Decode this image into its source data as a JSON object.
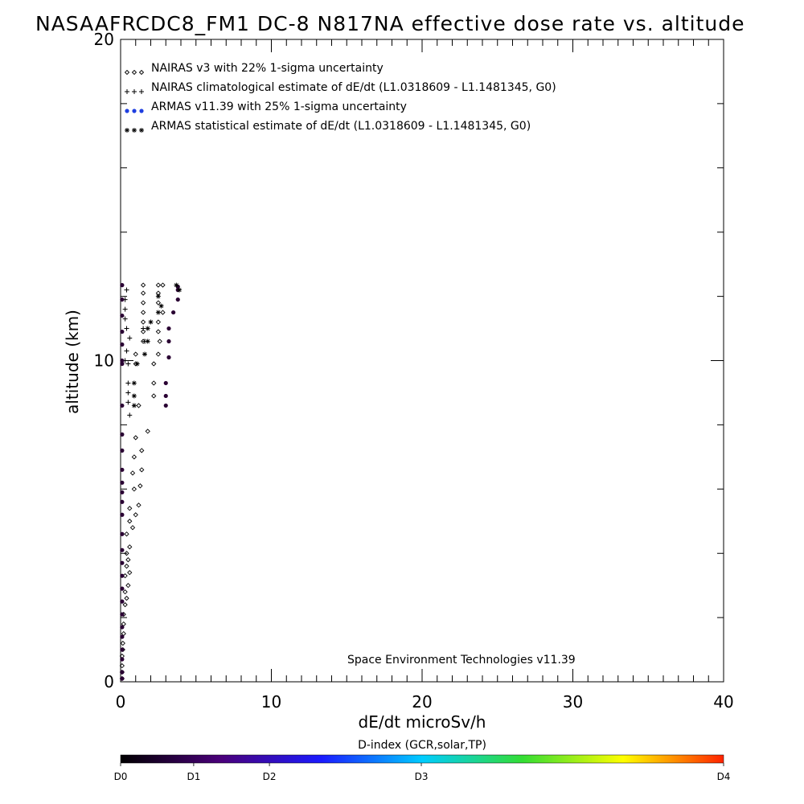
{
  "chart_data": {
    "type": "scatter",
    "title": "NASAAFRCDC8_FM1 DC-8   N817NA effective dose rate vs. altitude",
    "xlabel": "dE/dt microSv/h",
    "ylabel": "altitude (km)",
    "xlim": [
      0,
      40
    ],
    "ylim": [
      0,
      20
    ],
    "x_ticks": [
      "0",
      "10",
      "20",
      "30",
      "40"
    ],
    "y_ticks": [
      "0",
      "10",
      "20"
    ],
    "legend_position": "top-left",
    "credit": "Space Environment Technologies v11.39",
    "legend": [
      {
        "symbol": "◇◇◇",
        "label": "NAIRAS v3 with 22% 1-sigma uncertainty",
        "color": "#000000"
      },
      {
        "symbol": "+++",
        "label": "NAIRAS climatological estimate of dE/dt (L1.0318609 - L1.1481345, G0)",
        "color": "#000000"
      },
      {
        "symbol": "●●●",
        "label": "ARMAS v11.39 with 25% 1-sigma uncertainty",
        "color": "#1f3fe0"
      },
      {
        "symbol": "✱✱✱",
        "label": "ARMAS statistical estimate of dE/dt (L1.0318609 - L1.1481345, G0)",
        "color": "#000000"
      }
    ],
    "series": [
      {
        "name": "NAIRAS v3 with 22% 1-sigma uncertainty",
        "marker": "diamond",
        "points": [
          [
            1.5,
            12.35
          ],
          [
            2.5,
            12.35
          ],
          [
            2.8,
            12.35
          ],
          [
            1.5,
            12.1
          ],
          [
            2.5,
            12.1
          ],
          [
            1.5,
            11.8
          ],
          [
            2.5,
            11.8
          ],
          [
            1.5,
            11.5
          ],
          [
            2.8,
            11.5
          ],
          [
            1.5,
            11.2
          ],
          [
            2.5,
            11.2
          ],
          [
            1.5,
            10.9
          ],
          [
            2.5,
            10.9
          ],
          [
            1.5,
            10.6
          ],
          [
            2.6,
            10.6
          ],
          [
            1.0,
            10.2
          ],
          [
            2.5,
            10.2
          ],
          [
            1.0,
            9.9
          ],
          [
            2.2,
            9.9
          ],
          [
            2.2,
            9.3
          ],
          [
            2.2,
            8.9
          ],
          [
            1.2,
            8.6
          ],
          [
            1.8,
            7.8
          ],
          [
            1.0,
            7.6
          ],
          [
            1.4,
            7.2
          ],
          [
            0.9,
            7.0
          ],
          [
            1.4,
            6.6
          ],
          [
            0.8,
            6.5
          ],
          [
            1.3,
            6.1
          ],
          [
            0.9,
            6.0
          ],
          [
            1.2,
            5.5
          ],
          [
            0.6,
            5.4
          ],
          [
            1.0,
            5.2
          ],
          [
            0.6,
            5.0
          ],
          [
            0.8,
            4.8
          ],
          [
            0.4,
            4.6
          ],
          [
            0.6,
            4.2
          ],
          [
            0.4,
            4.0
          ],
          [
            0.5,
            3.8
          ],
          [
            0.4,
            3.6
          ],
          [
            0.6,
            3.4
          ],
          [
            0.3,
            3.3
          ],
          [
            0.5,
            3.0
          ],
          [
            0.3,
            2.8
          ],
          [
            0.4,
            2.6
          ],
          [
            0.3,
            2.4
          ],
          [
            0.2,
            2.1
          ],
          [
            0.2,
            1.8
          ],
          [
            0.2,
            1.5
          ],
          [
            0.15,
            1.2
          ],
          [
            0.15,
            1.0
          ],
          [
            0.1,
            0.8
          ],
          [
            0.1,
            0.5
          ],
          [
            0.1,
            0.3
          ],
          [
            0.1,
            0.1
          ]
        ]
      },
      {
        "name": "NAIRAS climatological estimate of dE/dt (L1.0318609 - L1.1481345, G0)",
        "marker": "plus",
        "points": [
          [
            0.4,
            12.2
          ],
          [
            0.3,
            11.9
          ],
          [
            0.3,
            11.6
          ],
          [
            0.3,
            11.3
          ],
          [
            0.4,
            11.0
          ],
          [
            1.5,
            11.0
          ],
          [
            0.6,
            10.7
          ],
          [
            1.6,
            10.6
          ],
          [
            0.4,
            10.3
          ],
          [
            0.3,
            10.0
          ],
          [
            0.5,
            9.9
          ],
          [
            0.5,
            9.3
          ],
          [
            0.5,
            9.0
          ],
          [
            0.5,
            8.7
          ],
          [
            0.6,
            8.3
          ]
        ]
      },
      {
        "name": "ARMAS v11.39 with 25% 1-sigma uncertainty",
        "marker": "dot",
        "points": [
          [
            3.8,
            12.3
          ],
          [
            3.8,
            12.2
          ],
          [
            3.8,
            11.9
          ],
          [
            3.5,
            11.5
          ],
          [
            3.2,
            11.0
          ],
          [
            3.2,
            10.6
          ],
          [
            3.2,
            10.1
          ],
          [
            3.0,
            9.3
          ],
          [
            3.0,
            8.9
          ],
          [
            3.0,
            8.6
          ],
          [
            0.1,
            12.35
          ],
          [
            0.1,
            11.9
          ],
          [
            0.1,
            11.4
          ],
          [
            0.1,
            10.9
          ],
          [
            0.1,
            10.5
          ],
          [
            0.1,
            10.0
          ],
          [
            0.1,
            9.9
          ],
          [
            0.1,
            8.6
          ],
          [
            0.1,
            7.7
          ],
          [
            0.1,
            7.2
          ],
          [
            0.1,
            6.6
          ],
          [
            0.1,
            6.2
          ],
          [
            0.1,
            5.9
          ],
          [
            0.1,
            5.6
          ],
          [
            0.1,
            5.2
          ],
          [
            0.1,
            4.6
          ],
          [
            0.1,
            4.1
          ],
          [
            0.1,
            3.7
          ],
          [
            0.1,
            3.3
          ],
          [
            0.1,
            2.9
          ],
          [
            0.1,
            2.5
          ],
          [
            0.1,
            2.1
          ],
          [
            0.1,
            1.7
          ],
          [
            0.1,
            1.4
          ],
          [
            0.1,
            1.0
          ],
          [
            0.1,
            0.7
          ],
          [
            0.1,
            0.3
          ],
          [
            0.1,
            0.1
          ]
        ]
      },
      {
        "name": "ARMAS statistical estimate of dE/dt (L1.0318609 - L1.1481345, G0)",
        "marker": "asterisk",
        "points": [
          [
            3.7,
            12.35
          ],
          [
            3.9,
            12.2
          ],
          [
            2.5,
            12.0
          ],
          [
            2.7,
            11.7
          ],
          [
            2.5,
            11.5
          ],
          [
            2.0,
            11.2
          ],
          [
            1.8,
            11.0
          ],
          [
            1.8,
            10.6
          ],
          [
            1.6,
            10.2
          ],
          [
            1.1,
            9.9
          ],
          [
            0.9,
            9.3
          ],
          [
            0.9,
            8.9
          ],
          [
            0.9,
            8.6
          ]
        ]
      }
    ],
    "colorbar": {
      "title": "D-index (GCR,solar,TP)",
      "labels": [
        "D0",
        "D1",
        "D2",
        "D3",
        "D4"
      ],
      "label_positions": [
        0,
        0.1212,
        0.2468,
        0.4987,
        1.0
      ],
      "stops": [
        "#000000",
        "#4a007a",
        "#1a1aff",
        "#00ccff",
        "#33dd33",
        "#ffff00",
        "#ff2200"
      ]
    }
  }
}
